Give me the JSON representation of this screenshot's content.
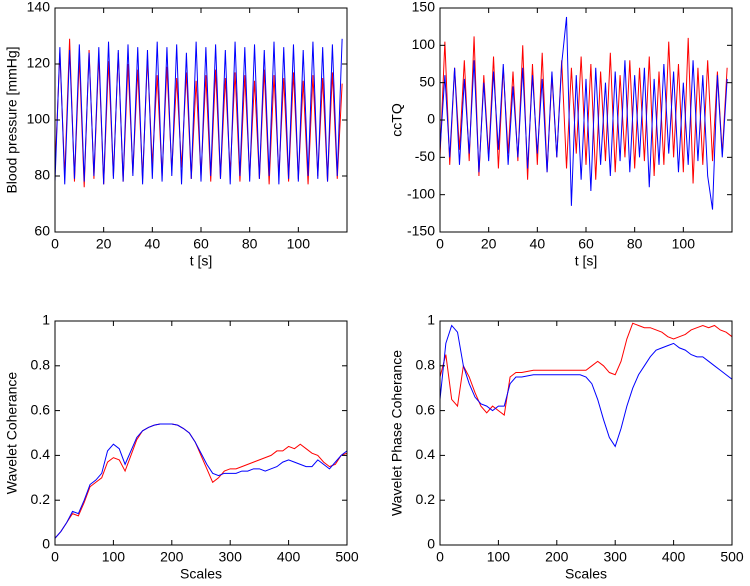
{
  "chart_data": [
    {
      "type": "line",
      "ylabel": "Blood pressure [mmHg]",
      "xlabel": "t [s]",
      "xlim": [
        0,
        120
      ],
      "xticks": [
        0,
        20,
        40,
        60,
        80,
        100
      ],
      "ylim": [
        60,
        140
      ],
      "yticks": [
        60,
        80,
        100,
        120,
        140
      ],
      "x": [
        0,
        2,
        4,
        6,
        8,
        10,
        12,
        14,
        16,
        18,
        20,
        22,
        24,
        26,
        28,
        30,
        32,
        34,
        36,
        38,
        40,
        42,
        44,
        46,
        48,
        50,
        52,
        54,
        56,
        58,
        60,
        62,
        64,
        66,
        68,
        70,
        72,
        74,
        76,
        78,
        80,
        82,
        84,
        86,
        88,
        90,
        92,
        94,
        96,
        98,
        100,
        102,
        104,
        106,
        108,
        110,
        112,
        114,
        116,
        118
      ],
      "series": [
        {
          "color": "#ff0000",
          "values": [
            82,
            124,
            80,
            129,
            78,
            122,
            76,
            125,
            79,
            123,
            77,
            121,
            80,
            124,
            78,
            120,
            81,
            118,
            79,
            122,
            84,
            116,
            80,
            119,
            82,
            115,
            83,
            117,
            79,
            114,
            80,
            116,
            78,
            118,
            79,
            115,
            81,
            117,
            78,
            116,
            80,
            114,
            79,
            118,
            77,
            116,
            80,
            115,
            78,
            117,
            79,
            114,
            77,
            116,
            80,
            115,
            78,
            117,
            79,
            113
          ]
        },
        {
          "color": "#0000ff",
          "values": [
            78,
            126,
            77,
            125,
            79,
            127,
            78,
            124,
            80,
            126,
            77,
            128,
            79,
            125,
            78,
            127,
            80,
            126,
            77,
            125,
            79,
            128,
            78,
            126,
            80,
            127,
            77,
            124,
            79,
            128,
            78,
            126,
            80,
            127,
            79,
            125,
            77,
            128,
            80,
            126,
            78,
            127,
            79,
            125,
            80,
            128,
            77,
            126,
            79,
            127,
            78,
            125,
            80,
            128,
            79,
            126,
            78,
            127,
            80,
            129
          ]
        }
      ]
    },
    {
      "type": "line",
      "ylabel": "ccTQ",
      "xlabel": "t [s]",
      "xlim": [
        0,
        120
      ],
      "xticks": [
        0,
        20,
        40,
        60,
        80,
        100
      ],
      "ylim": [
        -150,
        150
      ],
      "yticks": [
        -150,
        -100,
        -50,
        0,
        50,
        100,
        150
      ],
      "x": [
        0,
        2,
        4,
        6,
        8,
        10,
        12,
        14,
        16,
        18,
        20,
        22,
        24,
        26,
        28,
        30,
        32,
        34,
        36,
        38,
        40,
        42,
        44,
        46,
        48,
        50,
        52,
        54,
        56,
        58,
        60,
        62,
        64,
        66,
        68,
        70,
        72,
        74,
        76,
        78,
        80,
        82,
        84,
        86,
        88,
        90,
        92,
        94,
        96,
        98,
        100,
        102,
        104,
        106,
        108,
        110,
        112,
        114,
        116,
        118
      ],
      "series": [
        {
          "color": "#ff0000",
          "values": [
            -50,
            105,
            -60,
            70,
            -40,
            80,
            -55,
            112,
            -75,
            60,
            -50,
            85,
            -65,
            70,
            -45,
            65,
            -55,
            100,
            -80,
            75,
            -60,
            90,
            -70,
            60,
            -50,
            80,
            -65,
            70,
            -45,
            85,
            -60,
            75,
            -80,
            65,
            -55,
            90,
            -70,
            60,
            -50,
            80,
            -65,
            70,
            -55,
            85,
            -75,
            65,
            -60,
            105,
            -50,
            75,
            -70,
            110,
            -85,
            70,
            -60,
            80,
            -55,
            65,
            -45,
            70
          ]
        },
        {
          "color": "#0000ff",
          "values": [
            -40,
            60,
            -50,
            70,
            -60,
            55,
            -45,
            80,
            -70,
            50,
            -55,
            65,
            -40,
            75,
            -60,
            45,
            -50,
            70,
            -65,
            60,
            -45,
            55,
            -70,
            65,
            -50,
            75,
            138,
            -115,
            60,
            -80,
            55,
            -95,
            70,
            -60,
            50,
            -75,
            65,
            -55,
            80,
            -70,
            60,
            -50,
            70,
            -90,
            55,
            -60,
            75,
            -45,
            65,
            -70,
            50,
            -60,
            80,
            -55,
            60,
            -75,
            -120,
            60,
            -50,
            55
          ]
        }
      ]
    },
    {
      "type": "line",
      "ylabel": "Wavelet Coherance",
      "xlabel": "Scales",
      "xlim": [
        0,
        500
      ],
      "xticks": [
        0,
        100,
        200,
        300,
        400,
        500
      ],
      "ylim": [
        0,
        1
      ],
      "yticks": [
        0,
        0.2,
        0.4,
        0.6,
        0.8,
        1
      ],
      "x": [
        0,
        10,
        20,
        30,
        40,
        50,
        60,
        70,
        80,
        90,
        100,
        110,
        120,
        130,
        140,
        150,
        160,
        170,
        180,
        190,
        200,
        210,
        220,
        230,
        240,
        250,
        260,
        270,
        280,
        290,
        300,
        310,
        320,
        330,
        340,
        350,
        360,
        370,
        380,
        390,
        400,
        410,
        420,
        430,
        440,
        450,
        460,
        470,
        480,
        490,
        500
      ],
      "series": [
        {
          "color": "#ff0000",
          "values": [
            0.03,
            0.06,
            0.1,
            0.14,
            0.13,
            0.19,
            0.26,
            0.28,
            0.3,
            0.37,
            0.39,
            0.38,
            0.33,
            0.4,
            0.47,
            0.51,
            0.525,
            0.535,
            0.54,
            0.54,
            0.54,
            0.535,
            0.52,
            0.5,
            0.46,
            0.4,
            0.34,
            0.28,
            0.3,
            0.33,
            0.34,
            0.34,
            0.35,
            0.36,
            0.37,
            0.38,
            0.39,
            0.4,
            0.42,
            0.42,
            0.44,
            0.43,
            0.45,
            0.43,
            0.41,
            0.4,
            0.37,
            0.35,
            0.36,
            0.4,
            0.41
          ]
        },
        {
          "color": "#0000ff",
          "values": [
            0.03,
            0.06,
            0.1,
            0.15,
            0.14,
            0.2,
            0.27,
            0.29,
            0.32,
            0.42,
            0.45,
            0.43,
            0.36,
            0.42,
            0.48,
            0.51,
            0.525,
            0.535,
            0.54,
            0.54,
            0.54,
            0.535,
            0.52,
            0.5,
            0.46,
            0.41,
            0.36,
            0.32,
            0.31,
            0.32,
            0.32,
            0.32,
            0.33,
            0.33,
            0.34,
            0.34,
            0.33,
            0.34,
            0.35,
            0.37,
            0.38,
            0.37,
            0.36,
            0.35,
            0.35,
            0.38,
            0.36,
            0.34,
            0.37,
            0.4,
            0.42
          ]
        }
      ]
    },
    {
      "type": "line",
      "ylabel": "Wavelet Phase Coherance",
      "xlabel": "Scales",
      "xlim": [
        0,
        500
      ],
      "xticks": [
        0,
        100,
        200,
        300,
        400,
        500
      ],
      "ylim": [
        0,
        1
      ],
      "yticks": [
        0,
        0.2,
        0.4,
        0.6,
        0.8,
        1
      ],
      "x": [
        0,
        10,
        20,
        30,
        40,
        50,
        60,
        70,
        80,
        90,
        100,
        110,
        120,
        130,
        140,
        150,
        160,
        170,
        180,
        190,
        200,
        210,
        220,
        230,
        240,
        250,
        260,
        270,
        280,
        290,
        300,
        310,
        320,
        330,
        340,
        350,
        360,
        370,
        380,
        390,
        400,
        410,
        420,
        430,
        440,
        450,
        460,
        470,
        480,
        490,
        500
      ],
      "series": [
        {
          "color": "#ff0000",
          "values": [
            0.75,
            0.85,
            0.65,
            0.62,
            0.8,
            0.75,
            0.68,
            0.62,
            0.59,
            0.62,
            0.6,
            0.58,
            0.75,
            0.77,
            0.77,
            0.775,
            0.78,
            0.78,
            0.78,
            0.78,
            0.78,
            0.78,
            0.78,
            0.78,
            0.78,
            0.78,
            0.8,
            0.82,
            0.8,
            0.77,
            0.76,
            0.82,
            0.92,
            0.99,
            0.98,
            0.97,
            0.97,
            0.96,
            0.95,
            0.93,
            0.92,
            0.93,
            0.94,
            0.96,
            0.97,
            0.98,
            0.97,
            0.98,
            0.96,
            0.95,
            0.93
          ]
        },
        {
          "color": "#0000ff",
          "values": [
            0.65,
            0.9,
            0.98,
            0.95,
            0.8,
            0.72,
            0.66,
            0.63,
            0.62,
            0.6,
            0.62,
            0.62,
            0.72,
            0.75,
            0.75,
            0.755,
            0.76,
            0.76,
            0.76,
            0.76,
            0.76,
            0.76,
            0.76,
            0.76,
            0.76,
            0.75,
            0.72,
            0.65,
            0.56,
            0.48,
            0.44,
            0.52,
            0.62,
            0.7,
            0.76,
            0.8,
            0.84,
            0.87,
            0.88,
            0.89,
            0.9,
            0.88,
            0.87,
            0.85,
            0.84,
            0.84,
            0.82,
            0.8,
            0.78,
            0.76,
            0.74
          ]
        }
      ]
    }
  ]
}
